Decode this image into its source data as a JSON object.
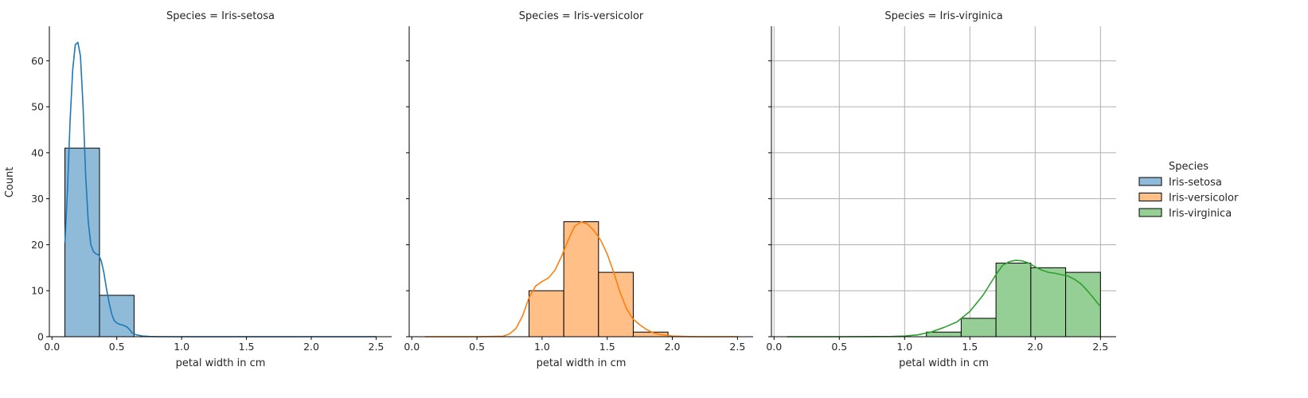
{
  "chart_data": {
    "type": "histogram-facet",
    "xlabel": "petal width in cm",
    "ylabel": "Count",
    "xlim": [
      -0.02,
      2.62
    ],
    "ylim": [
      0,
      67.5
    ],
    "x_ticks": [
      0.0,
      0.5,
      1.0,
      1.5,
      2.0,
      2.5
    ],
    "x_tick_labels": [
      "0.0",
      "0.5",
      "1.0",
      "1.5",
      "2.0",
      "2.5"
    ],
    "y_ticks": [
      0,
      10,
      20,
      30,
      40,
      50,
      60
    ],
    "y_tick_labels": [
      "0",
      "10",
      "20",
      "30",
      "40",
      "50",
      "60"
    ],
    "bin_edges": [
      0.1,
      0.3667,
      0.6333,
      0.9,
      1.1667,
      1.4333,
      1.7,
      1.9667,
      2.2333,
      2.5
    ],
    "legend": {
      "title": "Species",
      "placement": "right",
      "entries": [
        "Iris-setosa",
        "Iris-versicolor",
        "Iris-virginica"
      ]
    },
    "panels": [
      {
        "title": "Species = Iris-setosa",
        "series": "Iris-setosa",
        "color": "#1f77b4",
        "fill": "#8fbbd9",
        "grid": false,
        "show_y_tick_labels": true,
        "counts": [
          41,
          9,
          0,
          0,
          0,
          0,
          0,
          0,
          0
        ],
        "kde_x": [
          0.1,
          0.12,
          0.14,
          0.16,
          0.18,
          0.2,
          0.22,
          0.24,
          0.26,
          0.28,
          0.3,
          0.32,
          0.34,
          0.36,
          0.38,
          0.4,
          0.42,
          0.44,
          0.46,
          0.48,
          0.5,
          0.52,
          0.55,
          0.58,
          0.6,
          0.62,
          0.65,
          0.7,
          0.75,
          0.8,
          0.9,
          1.0,
          1.5,
          2.0,
          2.5
        ],
        "kde_y": [
          20.5,
          32,
          47,
          58,
          63.5,
          64,
          61,
          50,
          35,
          25,
          20,
          18.5,
          18,
          17.8,
          16.5,
          14,
          10.5,
          7.5,
          5,
          3.5,
          3,
          2.7,
          2.5,
          2.1,
          1.5,
          0.8,
          0.4,
          0.15,
          0.05,
          0.02,
          0,
          0,
          0,
          0,
          0
        ]
      },
      {
        "title": "Species = Iris-versicolor",
        "series": "Iris-versicolor",
        "color": "#ff7f0e",
        "fill": "#ffbf86",
        "grid": false,
        "show_y_tick_labels": false,
        "counts": [
          0,
          0,
          0,
          10,
          25,
          14,
          1,
          0,
          0
        ],
        "kde_x": [
          0.1,
          0.5,
          0.7,
          0.75,
          0.8,
          0.85,
          0.9,
          0.95,
          1.0,
          1.05,
          1.1,
          1.15,
          1.2,
          1.25,
          1.3,
          1.35,
          1.4,
          1.45,
          1.5,
          1.55,
          1.6,
          1.65,
          1.7,
          1.75,
          1.8,
          1.85,
          1.9,
          2.0,
          2.1,
          2.2,
          2.5
        ],
        "kde_y": [
          0,
          0,
          0.1,
          0.6,
          1.8,
          4.5,
          8.5,
          11,
          12,
          12.8,
          14.5,
          17.5,
          21,
          24,
          25,
          24.5,
          23,
          21,
          18,
          14,
          9.5,
          6,
          3.8,
          2.6,
          1.6,
          0.9,
          0.5,
          0.15,
          0.05,
          0,
          0
        ]
      },
      {
        "title": "Species = Iris-virginica",
        "series": "Iris-virginica",
        "color": "#2ca02c",
        "fill": "#96cf96",
        "grid": true,
        "show_y_tick_labels": false,
        "counts": [
          0,
          0,
          0,
          0,
          1,
          4,
          16,
          15,
          14
        ],
        "kde_x": [
          0.1,
          0.5,
          0.9,
          1.0,
          1.1,
          1.2,
          1.3,
          1.4,
          1.5,
          1.6,
          1.7,
          1.75,
          1.8,
          1.85,
          1.9,
          1.95,
          2.0,
          2.05,
          2.1,
          2.15,
          2.2,
          2.25,
          2.3,
          2.35,
          2.4,
          2.45,
          2.5
        ],
        "kde_y": [
          0,
          0,
          0.05,
          0.15,
          0.4,
          1,
          2,
          3.2,
          5.5,
          9,
          13.5,
          15.5,
          16.3,
          16.6,
          16.5,
          16,
          15.2,
          14.5,
          14,
          13.8,
          13.5,
          13.2,
          12.5,
          11.5,
          10,
          8.3,
          6.5
        ]
      }
    ]
  }
}
